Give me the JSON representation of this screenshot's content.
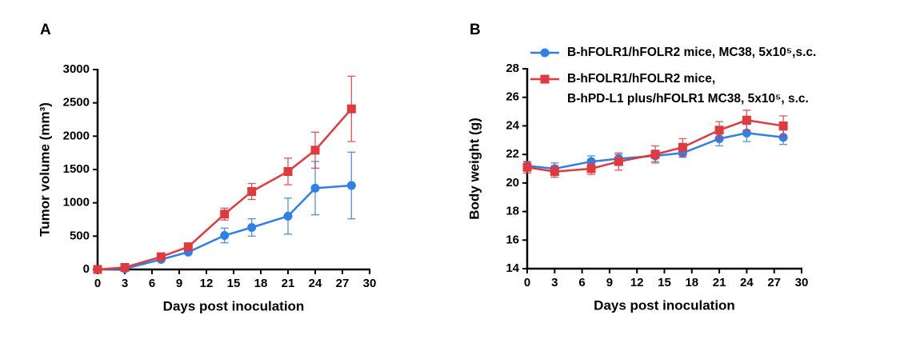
{
  "chart_data": [
    {
      "type": "line",
      "panel_label": "A",
      "xlabel": "Days post inoculation",
      "ylabel": "Tumor volume (mm³)",
      "x": [
        0,
        3,
        7,
        10,
        14,
        17,
        21,
        24,
        28
      ],
      "xlim": [
        0,
        30
      ],
      "xticks": [
        0,
        3,
        6,
        9,
        12,
        15,
        18,
        21,
        24,
        27,
        30
      ],
      "ylim": [
        0,
        3000
      ],
      "yticks": [
        0,
        500,
        1000,
        1500,
        2000,
        2500,
        3000
      ],
      "series": [
        {
          "name": "B-hFOLR1/hFOLR2 mice, MC38, 5x10⁵,s.c.",
          "color": "#2f7fe8",
          "marker": "circle",
          "values": [
            0,
            10,
            150,
            260,
            510,
            630,
            800,
            1220,
            1260
          ],
          "errors": [
            5,
            10,
            20,
            30,
            110,
            130,
            270,
            400,
            500
          ]
        },
        {
          "name": "B-hFOLR1/hFOLR2 mice,\nB-hPD-L1 plus/hFOLR1 MC38, 5x10⁵, s.c.",
          "color": "#e0393e",
          "marker": "square",
          "values": [
            0,
            30,
            190,
            340,
            830,
            1170,
            1470,
            1790,
            2410
          ],
          "errors": [
            5,
            10,
            25,
            40,
            90,
            120,
            200,
            270,
            490
          ]
        }
      ]
    },
    {
      "type": "line",
      "panel_label": "B",
      "xlabel": "Days post inoculation",
      "ylabel": "Body weight (g)",
      "legend": "top-left",
      "x": [
        0,
        3,
        7,
        10,
        14,
        17,
        21,
        24,
        28
      ],
      "xlim": [
        0,
        30
      ],
      "xticks": [
        0,
        3,
        6,
        9,
        12,
        15,
        18,
        21,
        24,
        27,
        30
      ],
      "ylim": [
        14,
        28
      ],
      "yticks": [
        14,
        16,
        18,
        20,
        22,
        24,
        26,
        28
      ],
      "series": [
        {
          "name": "B-hFOLR1/hFOLR2 mice, MC38, 5x10⁵,s.c.",
          "color": "#2f7fe8",
          "marker": "circle",
          "values": [
            21.2,
            21.0,
            21.5,
            21.7,
            21.9,
            22.1,
            23.1,
            23.5,
            23.2
          ],
          "errors": [
            0.3,
            0.4,
            0.4,
            0.3,
            0.4,
            0.3,
            0.5,
            0.6,
            0.5
          ]
        },
        {
          "name": "B-hFOLR1/hFOLR2 mice,\nB-hPD-L1 plus/hFOLR1 MC38, 5x10⁵, s.c.",
          "color": "#e0393e",
          "marker": "square",
          "values": [
            21.1,
            20.8,
            21.0,
            21.5,
            22.0,
            22.5,
            23.7,
            24.4,
            24.0
          ],
          "errors": [
            0.4,
            0.4,
            0.4,
            0.6,
            0.6,
            0.6,
            0.6,
            0.7,
            0.7
          ]
        }
      ]
    }
  ]
}
